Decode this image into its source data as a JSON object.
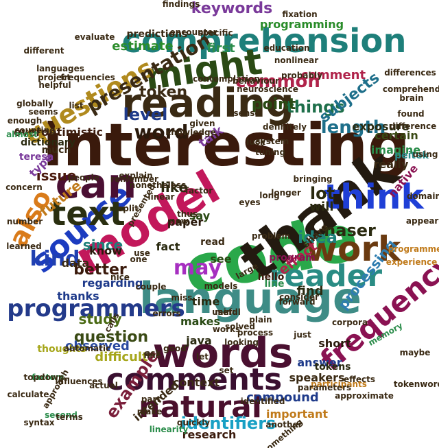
{
  "image_title": "",
  "words": [
    {
      "text": "interesting",
      "color": "#3a1a0c"
    },
    {
      "text": "code",
      "color": "#2aa84a"
    },
    {
      "text": "language",
      "color": "#3e8c86"
    },
    {
      "text": "model",
      "color": "#c2185b"
    },
    {
      "text": "words",
      "color": "#4a1030"
    },
    {
      "text": "thank",
      "color": "#231a10"
    },
    {
      "text": "reading",
      "color": "#3a2a14"
    },
    {
      "text": "source",
      "color": "#1c3cc0"
    },
    {
      "text": "comprehension",
      "color": "#1e7f7a"
    },
    {
      "text": "can",
      "color": "#4a0f33"
    },
    {
      "text": "text",
      "color": "#2a2f10"
    },
    {
      "text": "think",
      "color": "#1f3fd6"
    },
    {
      "text": "might",
      "color": "#2a4a14"
    },
    {
      "text": "frequency",
      "color": "#8a1252"
    },
    {
      "text": "work",
      "color": "#6a3a10"
    },
    {
      "text": "reader",
      "color": "#2a8c84"
    },
    {
      "text": "also",
      "color": "#d97b1a"
    },
    {
      "text": "natural",
      "color": "#4a0f2c"
    },
    {
      "text": "comments",
      "color": "#3a1030"
    },
    {
      "text": "programmers",
      "color": "#233a8a"
    },
    {
      "text": "questions",
      "color": "#b08a1e"
    },
    {
      "text": "identifiers",
      "color": "#19a0c4"
    },
    {
      "text": "length",
      "color": "#1e6f8a"
    },
    {
      "text": "may",
      "color": "#a62fc0"
    },
    {
      "text": "kind",
      "color": "#2040b0"
    },
    {
      "text": "presentation",
      "color": "#3a2a14"
    },
    {
      "text": "naser",
      "color": "#2a2a10"
    },
    {
      "text": "word",
      "color": "#2a1a0c"
    },
    {
      "text": "common",
      "color": "#b0234a"
    },
    {
      "text": "things",
      "color": "#1e6f4a"
    },
    {
      "text": "subjects",
      "color": "#1e6f8a"
    },
    {
      "text": "processing",
      "color": "#2e7db0"
    },
    {
      "text": "example",
      "color": "#7a1e3a"
    },
    {
      "text": "question",
      "color": "#3a4a14"
    },
    {
      "text": "effect",
      "color": "#b0234a"
    },
    {
      "text": "idea",
      "color": "#1e7f7a"
    },
    {
      "text": "future",
      "color": "#c07a1a"
    },
    {
      "text": "better",
      "color": "#3a1a0c"
    },
    {
      "text": "keywords",
      "color": "#7a3a9a"
    },
    {
      "text": "token",
      "color": "#3a2a14"
    },
    {
      "text": "level",
      "color": "#1e3a8a"
    },
    {
      "text": "point",
      "color": "#2a4a14"
    },
    {
      "text": "lot",
      "color": "#2a2a10"
    },
    {
      "text": "study",
      "color": "#4a6a14"
    },
    {
      "text": "programming",
      "color": "#2a8c2a"
    },
    {
      "text": "like",
      "color": "#2a2a10"
    },
    {
      "text": "since",
      "color": "#1e7f7a"
    },
    {
      "text": "issue",
      "color": "#4a1a0c"
    },
    {
      "text": "compound",
      "color": "#1e3a8a"
    },
    {
      "text": "difficult",
      "color": "#a6a61a"
    },
    {
      "text": "overoptimistic",
      "color": "#3a1a0c"
    },
    {
      "text": "observed",
      "color": "#2a4aa0"
    },
    {
      "text": "thanks",
      "color": "#1e3a8a"
    },
    {
      "text": "estimate",
      "color": "#2a8c2a"
    },
    {
      "text": "first",
      "color": "#2a8c4a"
    },
    {
      "text": "comment",
      "color": "#b0234a"
    },
    {
      "text": "know",
      "color": "#2a1a0c"
    },
    {
      "text": "talk",
      "color": "#7a3a9a"
    },
    {
      "text": "find",
      "color": "#2a2a10"
    },
    {
      "text": "regarding",
      "color": "#1e3a8a"
    },
    {
      "text": "will",
      "color": "#2a2a10"
    },
    {
      "text": "short",
      "color": "#2a1a0c"
    },
    {
      "text": "answer",
      "color": "#1e3a8a"
    },
    {
      "text": "makes",
      "color": "#2a4a14"
    },
    {
      "text": "intended",
      "color": "#3a2a14"
    },
    {
      "text": "context",
      "color": "#3a2a14"
    },
    {
      "text": "important",
      "color": "#c07a1a"
    },
    {
      "text": "research",
      "color": "#3a1a0c"
    },
    {
      "text": "java",
      "color": "#2a2a10"
    },
    {
      "text": "native",
      "color": "#8a1252"
    },
    {
      "text": "really",
      "color": "#3a2a14"
    },
    {
      "text": "imagine",
      "color": "#2a8c4a"
    },
    {
      "text": "certain",
      "color": "#3a4a14"
    },
    {
      "text": "speakers",
      "color": "#3a2a14"
    },
    {
      "text": "exposure",
      "color": "#2a2a10"
    },
    {
      "text": "type",
      "color": "#7a3a9a"
    },
    {
      "text": "data",
      "color": "#3a2a14"
    },
    {
      "text": "time",
      "color": "#2a2a10"
    },
    {
      "text": "fact",
      "color": "#2a2a10"
    },
    {
      "text": "say",
      "color": "#2a4a14"
    },
    {
      "text": "see",
      "color": "#2a4a14"
    },
    {
      "text": "thoughts",
      "color": "#a6a61a"
    },
    {
      "text": "dictionary",
      "color": "#2a2a10"
    },
    {
      "text": "teresa",
      "color": "#7a3a9a"
    },
    {
      "text": "much",
      "color": "#3a2a14"
    },
    {
      "text": "paper",
      "color": "#2a1a0c"
    },
    {
      "text": "read",
      "color": "#3a2a14"
    },
    {
      "text": "share",
      "color": "#3a2a14"
    },
    {
      "text": "program",
      "color": "#8a1252"
    },
    {
      "text": "line",
      "color": "#2a8c4a"
    },
    {
      "text": "hello",
      "color": "#3a1a0c"
    },
    {
      "text": "peitek",
      "color": "#2a8c8a"
    },
    {
      "text": "tokens",
      "color": "#2a2a10"
    },
    {
      "text": "findings",
      "color": "#3a2a14"
    },
    {
      "text": "predictions",
      "color": "#3a2a14"
    },
    {
      "text": "different",
      "color": "#3a2a14"
    },
    {
      "text": "languages",
      "color": "#3a2a14"
    },
    {
      "text": "knowledge",
      "color": "#3a2a14"
    },
    {
      "text": "counting",
      "color": "#3a2a14"
    },
    {
      "text": "enough",
      "color": "#3a2a14"
    },
    {
      "text": "almost",
      "color": "#2a8c4a"
    },
    {
      "text": "people",
      "color": "#3a2a14"
    },
    {
      "text": "remember",
      "color": "#3a2a14"
    },
    {
      "text": "explain",
      "color": "#3a2a14"
    },
    {
      "text": "concern",
      "color": "#3a2a14"
    },
    {
      "text": "split",
      "color": "#3a2a14"
    },
    {
      "text": "factor",
      "color": "#3a2a14"
    },
    {
      "text": "eyes",
      "color": "#3a2a14"
    },
    {
      "text": "long",
      "color": "#3a2a14"
    },
    {
      "text": "longer",
      "color": "#3a2a14"
    },
    {
      "text": "calculate",
      "color": "#3a2a14"
    },
    {
      "text": "approach",
      "color": "#3a2a14"
    },
    {
      "text": "factors",
      "color": "#2a8c4a"
    },
    {
      "text": "second",
      "color": "#2a8c4a"
    },
    {
      "text": "terms",
      "color": "#3a2a14"
    },
    {
      "text": "influences",
      "color": "#3a2a14"
    },
    {
      "text": "automatic",
      "color": "#3a2a14"
    },
    {
      "text": "topdown",
      "color": "#3a2a14"
    },
    {
      "text": "syntax",
      "color": "#3a2a14"
    },
    {
      "text": "linearity",
      "color": "#2a8c4a"
    },
    {
      "text": "identified",
      "color": "#3a2a14"
    },
    {
      "text": "something",
      "color": "#3a2a14"
    },
    {
      "text": "approximate",
      "color": "#3a2a14"
    },
    {
      "text": "effects",
      "color": "#3a2a14"
    },
    {
      "text": "participants",
      "color": "#c07a1a"
    },
    {
      "text": "parameters",
      "color": "#3a2a14"
    },
    {
      "text": "tokenword",
      "color": "#3a2a14"
    },
    {
      "text": "maybe",
      "color": "#3a2a14"
    },
    {
      "text": "memory",
      "color": "#2a8c4a"
    },
    {
      "text": "experience",
      "color": "#c07a1a"
    },
    {
      "text": "programmer",
      "color": "#c07a1a"
    },
    {
      "text": "domain",
      "color": "#3a2a14"
    },
    {
      "text": "appeared",
      "color": "#3a2a14"
    },
    {
      "text": "using",
      "color": "#3a2a14"
    },
    {
      "text": "brain",
      "color": "#3a2a14"
    },
    {
      "text": "found",
      "color": "#3a2a14"
    },
    {
      "text": "difference",
      "color": "#3a2a14"
    },
    {
      "text": "comprehend",
      "color": "#3a2a14"
    },
    {
      "text": "differences",
      "color": "#3a2a14"
    },
    {
      "text": "fixation",
      "color": "#3a2a14"
    },
    {
      "text": "education",
      "color": "#3a2a14"
    },
    {
      "text": "behaviour",
      "color": "#3a2a14"
    },
    {
      "text": "neuroscience",
      "color": "#3a2a14"
    },
    {
      "text": "probably",
      "color": "#3a2a14"
    },
    {
      "text": "definitely",
      "color": "#3a2a14"
    },
    {
      "text": "system",
      "color": "#3a2a14"
    },
    {
      "text": "tuning",
      "color": "#3a2a14"
    },
    {
      "text": "luck",
      "color": "#3a2a14"
    },
    {
      "text": "sense",
      "color": "#3a2a14"
    },
    {
      "text": "given",
      "color": "#3a2a14"
    },
    {
      "text": "list",
      "color": "#3a2a14"
    },
    {
      "text": "globally",
      "color": "#3a2a14"
    },
    {
      "text": "seems",
      "color": "#3a2a14"
    },
    {
      "text": "helpful",
      "color": "#3a2a14"
    },
    {
      "text": "project",
      "color": "#3a2a14"
    },
    {
      "text": "frequencies",
      "color": "#3a2a14"
    },
    {
      "text": "evaluate",
      "color": "#3a2a14"
    },
    {
      "text": "encounter",
      "color": "#3a2a14"
    },
    {
      "text": "specific",
      "color": "#3a2a14"
    },
    {
      "text": "contemplation",
      "color": "#3a2a14"
    },
    {
      "text": "nonlinear",
      "color": "#3a2a14"
    },
    {
      "text": "presented",
      "color": "#3a2a14"
    },
    {
      "text": "nonetheless",
      "color": "#3a2a14"
    },
    {
      "text": "linear",
      "color": "#3a2a14"
    },
    {
      "text": "thus",
      "color": "#3a2a14"
    },
    {
      "text": "new",
      "color": "#3a2a14"
    },
    {
      "text": "one",
      "color": "#3a2a14"
    },
    {
      "text": "use",
      "color": "#3a2a14"
    },
    {
      "text": "nice",
      "color": "#3a2a14"
    },
    {
      "text": "couple",
      "color": "#3a2a14"
    },
    {
      "text": "miss",
      "color": "#3a2a14"
    },
    {
      "text": "solved",
      "color": "#3a2a14"
    },
    {
      "text": "process",
      "color": "#3a2a14"
    },
    {
      "text": "looking",
      "color": "#3a2a14"
    },
    {
      "text": "just",
      "color": "#3a2a14"
    },
    {
      "text": "corpora",
      "color": "#3a2a14"
    },
    {
      "text": "forward",
      "color": "#3a2a14"
    },
    {
      "text": "consider",
      "color": "#3a2a14"
    },
    {
      "text": "plain",
      "color": "#3a2a14"
    },
    {
      "text": "works",
      "color": "#3a2a14"
    },
    {
      "text": "useful",
      "color": "#3a2a14"
    },
    {
      "text": "models",
      "color": "#3a2a14"
    },
    {
      "text": "large",
      "color": "#3a2a14"
    },
    {
      "text": "errors",
      "color": "#3a2a14"
    },
    {
      "text": "ask",
      "color": "#3a2a14"
    },
    {
      "text": "good",
      "color": "#3a2a14"
    },
    {
      "text": "let",
      "color": "#3a2a14"
    },
    {
      "text": "set",
      "color": "#3a2a14"
    },
    {
      "text": "part",
      "color": "#3a2a14"
    },
    {
      "text": "make",
      "color": "#3a2a14"
    },
    {
      "text": "quickly",
      "color": "#3a2a14"
    },
    {
      "text": "calls",
      "color": "#3a2a14"
    },
    {
      "text": "fine",
      "color": "#3a2a14"
    },
    {
      "text": "actual",
      "color": "#3a2a14"
    },
    {
      "text": "number",
      "color": "#3a2a14"
    },
    {
      "text": "learned",
      "color": "#3a2a14"
    },
    {
      "text": "another",
      "color": "#3a2a14"
    },
    {
      "text": "problem",
      "color": "#3a2a14"
    },
    {
      "text": "bringing",
      "color": "#3a2a14"
    },
    {
      "text": "mind",
      "color": "#3a2a14"
    },
    {
      "text": "many",
      "color": "#3a2a14"
    },
    {
      "text": "attention",
      "color": "#3a2a14"
    },
    {
      "text": "build",
      "color": "#3a2a14"
    },
    {
      "text": "get",
      "color": "#3a2a14"
    },
    {
      "text": "look",
      "color": "#3a2a14"
    }
  ]
}
